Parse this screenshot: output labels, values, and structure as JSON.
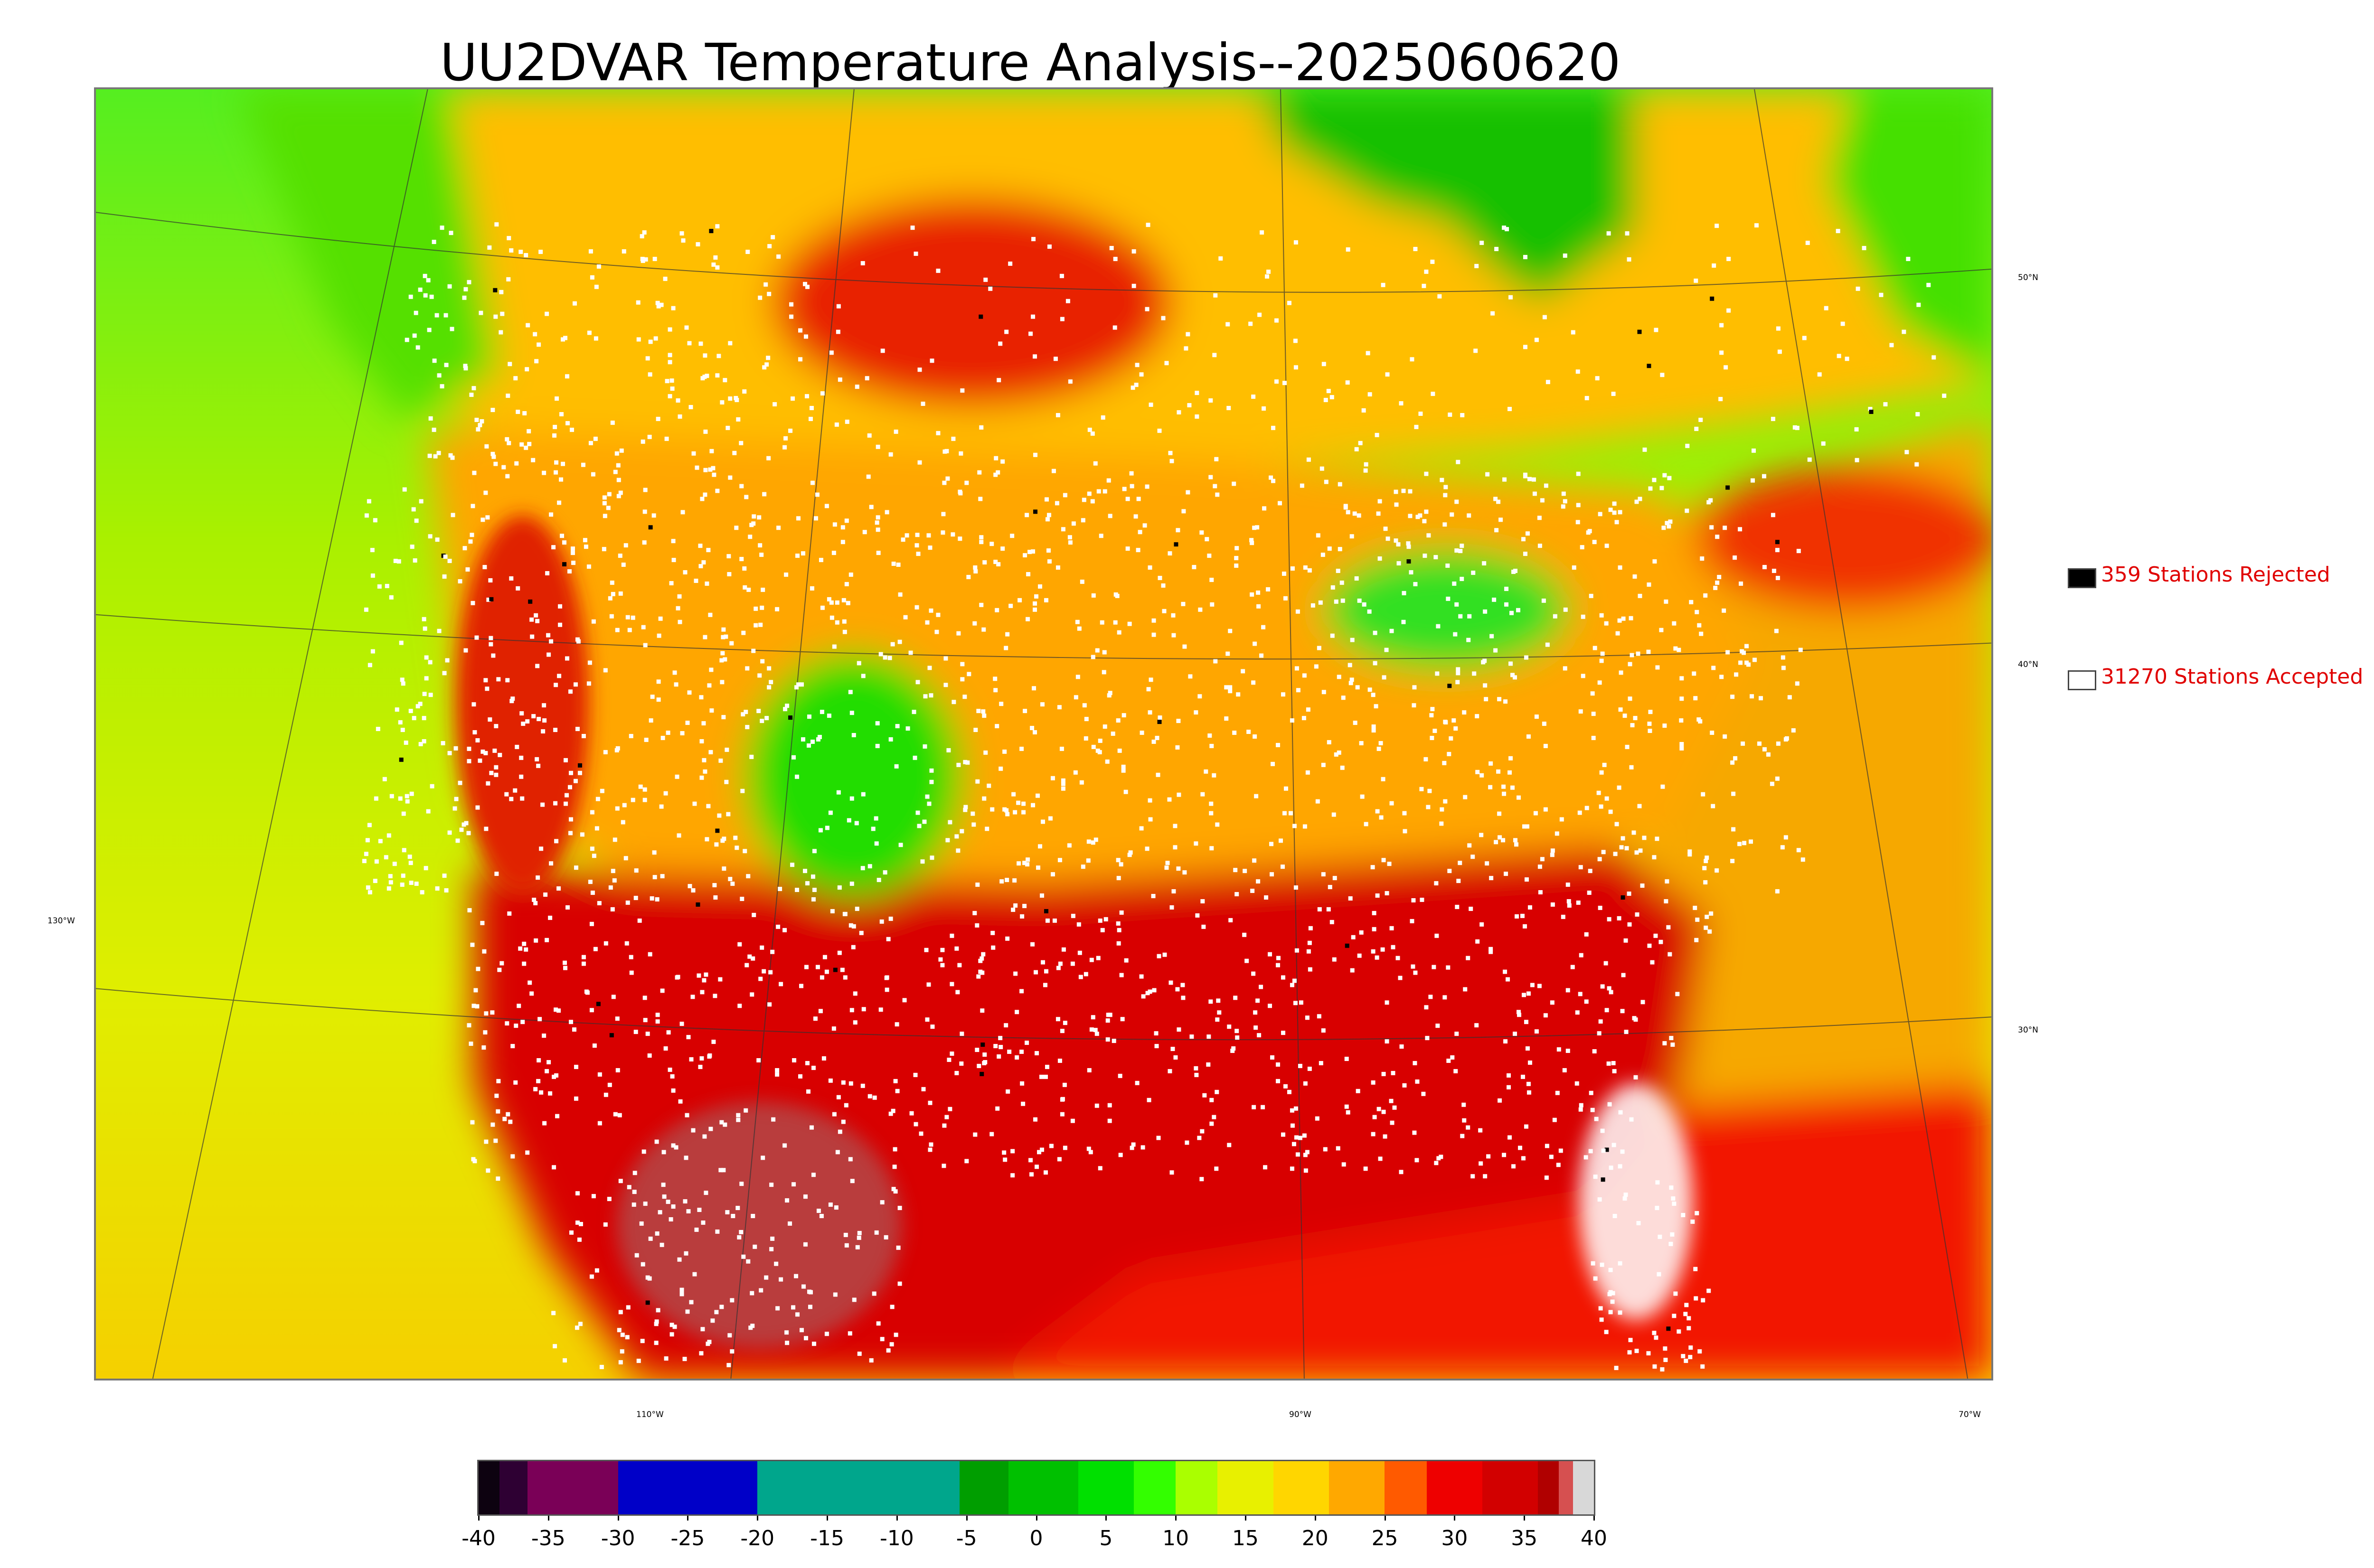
{
  "title": "UU2DVAR Temperature Analysis--2025060620",
  "legend": {
    "rejected": {
      "label": "359 Stations Rejected",
      "swatch_color": "#000000"
    },
    "accepted": {
      "label": "31270 Stations Accepted",
      "swatch_color": "#ffffff"
    }
  },
  "longitude_labels": [
    "110°W",
    "90°W",
    "70°W",
    "130°W"
  ],
  "latitude_labels": [
    "50°N",
    "40°N",
    "30°N"
  ],
  "colorbar": {
    "ticks": [
      "-40",
      "-35",
      "-30",
      "-25",
      "-20",
      "-15",
      "-10",
      "-5",
      "0",
      "5",
      "10",
      "15",
      "20",
      "25",
      "30",
      "35",
      "40"
    ],
    "min": -40,
    "max": 40,
    "bands": [
      {
        "from": -40,
        "to": -38.5,
        "color": "#0d0210"
      },
      {
        "from": -38.5,
        "to": -36.5,
        "color": "#2e0033"
      },
      {
        "from": -36.5,
        "to": -30,
        "color": "#7a0057"
      },
      {
        "from": -30,
        "to": -20,
        "color": "#0000c8"
      },
      {
        "from": -20,
        "to": -5.5,
        "color": "#00a68c"
      },
      {
        "from": -5.5,
        "to": -2,
        "color": "#009e00"
      },
      {
        "from": -2,
        "to": 3,
        "color": "#00c000"
      },
      {
        "from": 3,
        "to": 7,
        "color": "#00e000"
      },
      {
        "from": 7,
        "to": 10,
        "color": "#33ff00"
      },
      {
        "from": 10,
        "to": 13,
        "color": "#aaff00"
      },
      {
        "from": 13,
        "to": 17,
        "color": "#e8f000"
      },
      {
        "from": 17,
        "to": 21,
        "color": "#ffd600"
      },
      {
        "from": 21,
        "to": 25,
        "color": "#ffa800"
      },
      {
        "from": 25,
        "to": 28,
        "color": "#ff5a00"
      },
      {
        "from": 28,
        "to": 32,
        "color": "#ee0000"
      },
      {
        "from": 32,
        "to": 36,
        "color": "#d20000"
      },
      {
        "from": 36,
        "to": 37.5,
        "color": "#b00000"
      },
      {
        "from": 37.5,
        "to": 38.5,
        "color": "#d65050"
      },
      {
        "from": 38.5,
        "to": 40,
        "color": "#d8d8d8"
      }
    ]
  },
  "colors": {
    "ocean_pacific": "#d8f000",
    "ocean_gulf": "#f22000",
    "ocean_atlantic": "#f5a500",
    "canada": "#ffc000",
    "hudson_bay": "#10c000",
    "conus_hot": "#d80000",
    "station_accepted": "#ffffff",
    "station_rejected": "#000000"
  }
}
